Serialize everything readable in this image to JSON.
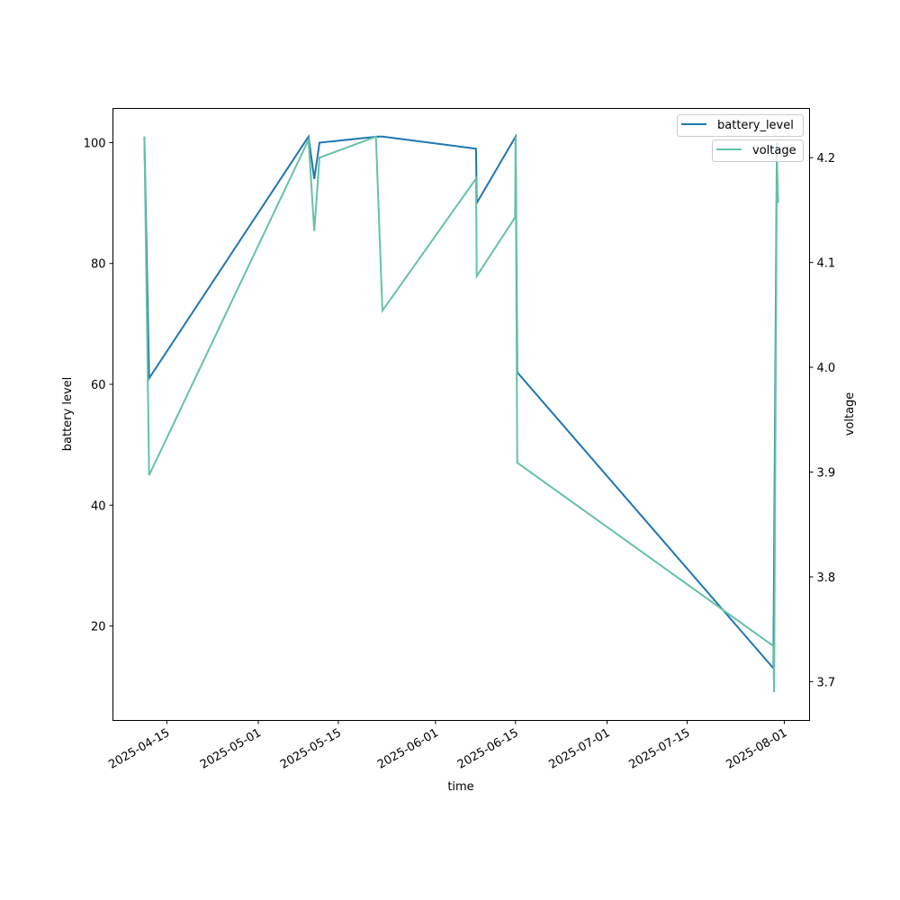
{
  "chart_data": {
    "type": "line",
    "title": "",
    "xlabel": "time",
    "ylabel": "battery level",
    "y2label": "voltage",
    "grid": false,
    "legend_placement": "top-right",
    "xlim": [
      "2025-04-05T14:00",
      "2025-08-05T10:00"
    ],
    "ylim": [
      4.36,
      105.66
    ],
    "y2lim": [
      3.663,
      4.247
    ],
    "x_ticks": [
      "2025-04-15",
      "2025-05-01",
      "2025-05-15",
      "2025-06-01",
      "2025-06-15",
      "2025-07-01",
      "2025-07-15",
      "2025-08-01"
    ],
    "y_ticks": [
      20,
      40,
      60,
      80,
      100
    ],
    "y2_ticks": [
      "3.7",
      "3.8",
      "3.9",
      "4.0",
      "4.1",
      "4.2"
    ],
    "series": [
      {
        "name": "battery_level",
        "axis": "left",
        "color": "#1f77b4",
        "points": [
          [
            "2025-04-11T02:00",
            101
          ],
          [
            "2025-04-11T22:00",
            61
          ],
          [
            "2025-05-09T19:00",
            101
          ],
          [
            "2025-05-10T19:00",
            94
          ],
          [
            "2025-05-11T17:00",
            100
          ],
          [
            "2025-05-21T22:00",
            101
          ],
          [
            "2025-05-22T17:00",
            101
          ],
          [
            "2025-06-08T02:00",
            99
          ],
          [
            "2025-06-08T05:00",
            90
          ],
          [
            "2025-06-15T00:00",
            101
          ],
          [
            "2025-06-15T07:00",
            62
          ],
          [
            "2025-07-30T02:00",
            13
          ],
          [
            "2025-07-30T17:00",
            100
          ],
          [
            "2025-07-30T17:00",
            98
          ]
        ]
      },
      {
        "name": "voltage",
        "axis": "right",
        "color": "#66c2a5",
        "points": [
          [
            "2025-04-11T02:00",
            4.22
          ],
          [
            "2025-04-11T22:00",
            3.897
          ],
          [
            "2025-05-09T19:00",
            4.217
          ],
          [
            "2025-05-10T19:00",
            4.13
          ],
          [
            "2025-05-11T17:00",
            4.2
          ],
          [
            "2025-05-21T14:00",
            4.22
          ],
          [
            "2025-05-22T17:00",
            4.054
          ],
          [
            "2025-06-08T02:00",
            4.18
          ],
          [
            "2025-06-08T05:00",
            4.087
          ],
          [
            "2025-06-14T22:00",
            4.143
          ],
          [
            "2025-06-15T00:00",
            4.22
          ],
          [
            "2025-06-15T07:00",
            3.909
          ],
          [
            "2025-07-30T02:00",
            3.734
          ],
          [
            "2025-07-30T05:00",
            3.69
          ],
          [
            "2025-07-30T17:00",
            4.2
          ],
          [
            "2025-07-30T22:00",
            4.157
          ]
        ]
      }
    ]
  }
}
